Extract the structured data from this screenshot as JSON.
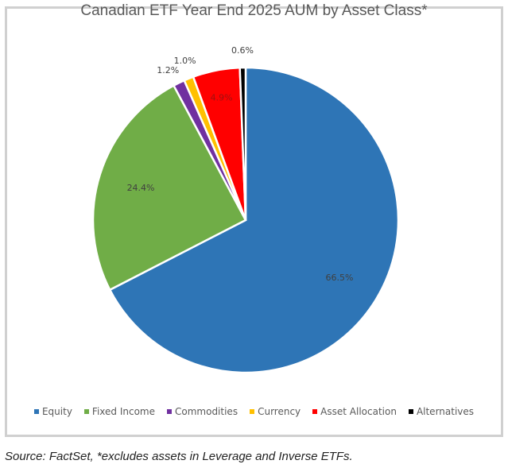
{
  "chart_data": {
    "type": "pie",
    "title": "Canadian ETF Year End 2025 AUM by Asset Class*",
    "start": "12 o'clock, clockwise",
    "slices": [
      {
        "name": "Equity",
        "value": 66.5,
        "label": "66.5%",
        "color": "#2E75B6"
      },
      {
        "name": "Fixed Income",
        "value": 24.4,
        "label": "24.4%",
        "color": "#70AD47"
      },
      {
        "name": "Commodities",
        "value": 1.2,
        "label": "1.2%",
        "color": "#7030A0"
      },
      {
        "name": "Currency",
        "value": 1.0,
        "label": "1.0%",
        "color": "#FFC000"
      },
      {
        "name": "Asset Allocation",
        "value": 4.9,
        "label": "4.9%",
        "color": "#FF0000"
      },
      {
        "name": "Alternatives",
        "value": 0.6,
        "label": "0.6%",
        "color": "#000000"
      }
    ],
    "legend": "bottom"
  },
  "source": "Source: FactSet, *excludes assets in Leverage and Inverse ETFs."
}
